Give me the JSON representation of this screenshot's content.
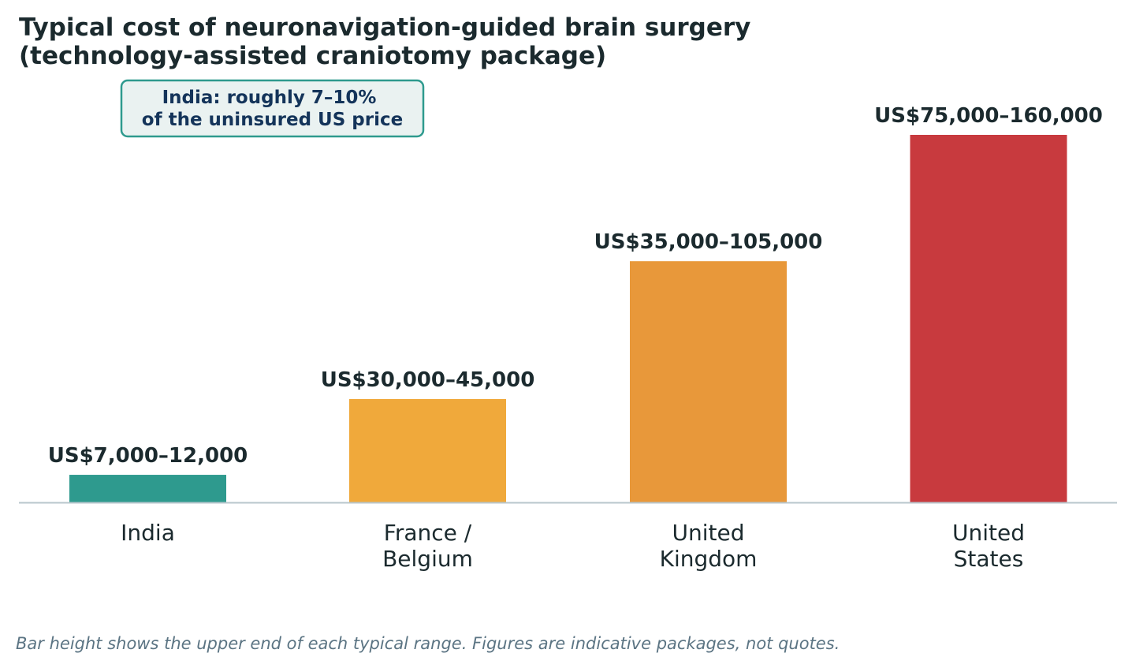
{
  "chart_data": {
    "type": "bar",
    "title_lines": [
      "Typical cost of neuronavigation-guided brain surgery",
      "(technology-assisted craniotomy package)"
    ],
    "annotation_lines": [
      "India: roughly 7–10%",
      "of the uninsured US price"
    ],
    "categories": [
      {
        "lines": [
          "India"
        ]
      },
      {
        "lines": [
          "France /",
          "Belgium"
        ]
      },
      {
        "lines": [
          "United",
          "Kingdom"
        ]
      },
      {
        "lines": [
          "United",
          "States"
        ]
      }
    ],
    "values": [
      12000,
      45000,
      105000,
      160000
    ],
    "range_labels": [
      "US$7,000–12,000",
      "US$30,000–45,000",
      "US$35,000–105,000",
      "US$75,000–160,000"
    ],
    "colors": [
      "#2e9a8e",
      "#f0a93b",
      "#e8983a",
      "#c83a3e"
    ],
    "ylim": [
      0,
      160000
    ],
    "grid": false,
    "footnote": "Bar height shows the upper end of each typical range. Figures are indicative packages, not quotes."
  }
}
